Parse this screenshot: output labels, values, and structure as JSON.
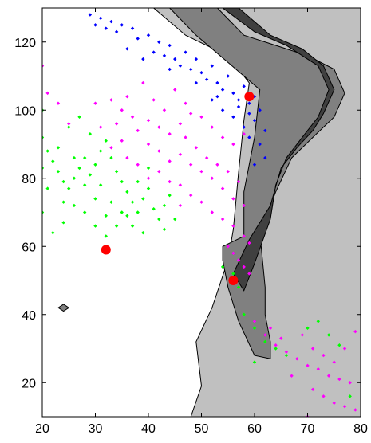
{
  "chart_data": {
    "type": "scatter",
    "title": "",
    "xlabel": "",
    "ylabel": "",
    "xlim": [
      20,
      80
    ],
    "ylim": [
      10,
      130
    ],
    "x_ticks": [
      20,
      30,
      40,
      50,
      60,
      70,
      80
    ],
    "y_ticks": [
      20,
      40,
      60,
      80,
      100,
      120
    ],
    "grid": false,
    "background_regions": [
      {
        "level": "shelf",
        "color": "#c0c0c0",
        "polygon": [
          [
            48,
            10
          ],
          [
            50,
            19
          ],
          [
            49,
            32
          ],
          [
            52,
            42
          ],
          [
            55,
            56
          ],
          [
            56,
            65
          ],
          [
            57,
            82
          ],
          [
            58,
            97
          ],
          [
            59,
            108
          ],
          [
            55,
            116
          ],
          [
            47,
            122
          ],
          [
            41,
            130
          ],
          [
            80,
            130
          ],
          [
            80,
            10
          ]
        ]
      },
      {
        "level": "slope",
        "color": "#808080",
        "polygon": [
          [
            53,
            130
          ],
          [
            58,
            122
          ],
          [
            64,
            119
          ],
          [
            70,
            116
          ],
          [
            75,
            112
          ],
          [
            77,
            105
          ],
          [
            75,
            98
          ],
          [
            71,
            92
          ],
          [
            67,
            86
          ],
          [
            64,
            76
          ],
          [
            61,
            64
          ],
          [
            62,
            48
          ],
          [
            62,
            40
          ],
          [
            63,
            32
          ],
          [
            63,
            27
          ],
          [
            60,
            28
          ],
          [
            57,
            38
          ],
          [
            55,
            48
          ],
          [
            54,
            56
          ],
          [
            54,
            60
          ],
          [
            58,
            63
          ],
          [
            58,
            76
          ],
          [
            60,
            92
          ],
          [
            61,
            106
          ],
          [
            55,
            114
          ],
          [
            49,
            122
          ],
          [
            44,
            130
          ]
        ]
      },
      {
        "level": "deep",
        "color": "#404040",
        "polygon": [
          [
            57,
            130
          ],
          [
            63,
            122
          ],
          [
            69,
            118
          ],
          [
            73,
            113
          ],
          [
            75,
            106
          ],
          [
            73,
            99
          ],
          [
            71,
            94
          ],
          [
            68,
            89
          ],
          [
            65,
            83
          ],
          [
            63,
            72
          ],
          [
            59,
            62
          ],
          [
            56,
            52
          ],
          [
            58,
            47
          ],
          [
            60,
            55
          ],
          [
            63,
            68
          ],
          [
            64,
            78
          ],
          [
            66,
            86
          ],
          [
            69,
            92
          ],
          [
            72,
            98
          ],
          [
            74,
            106
          ],
          [
            72,
            113
          ],
          [
            66,
            119
          ],
          [
            60,
            123
          ],
          [
            54,
            130
          ]
        ]
      },
      {
        "level": "islet",
        "color": "#808080",
        "polygon": [
          [
            23,
            42
          ],
          [
            24,
            41
          ],
          [
            25,
            42
          ],
          [
            24,
            43
          ]
        ]
      }
    ],
    "series": [
      {
        "color": "#0000ff",
        "marker": "small-diamond",
        "points": [
          [
            29,
            128
          ],
          [
            31,
            127
          ],
          [
            33,
            126
          ],
          [
            35,
            125
          ],
          [
            37,
            124
          ],
          [
            34,
            123
          ],
          [
            38,
            121
          ],
          [
            40,
            122
          ],
          [
            42,
            120
          ],
          [
            44,
            119
          ],
          [
            41,
            117
          ],
          [
            43,
            116
          ],
          [
            45,
            115
          ],
          [
            47,
            117
          ],
          [
            49,
            115
          ],
          [
            46,
            113
          ],
          [
            48,
            112
          ],
          [
            50,
            111
          ],
          [
            52,
            113
          ],
          [
            51,
            109
          ],
          [
            53,
            108
          ],
          [
            55,
            110
          ],
          [
            54,
            106
          ],
          [
            56,
            105
          ],
          [
            58,
            107
          ],
          [
            57,
            103
          ],
          [
            59,
            102
          ],
          [
            60,
            104
          ],
          [
            61,
            100
          ],
          [
            60,
            97
          ],
          [
            58,
            95
          ],
          [
            59,
            92
          ],
          [
            61,
            90
          ],
          [
            62,
            86
          ],
          [
            60,
            84
          ],
          [
            56,
            98
          ],
          [
            54,
            100
          ],
          [
            52,
            103
          ],
          [
            36,
            118
          ],
          [
            39,
            115
          ],
          [
            32,
            124
          ],
          [
            30,
            125
          ],
          [
            44,
            112
          ],
          [
            49,
            108
          ],
          [
            53,
            104
          ],
          [
            57,
            101
          ],
          [
            59,
            99
          ],
          [
            62,
            94
          ]
        ]
      },
      {
        "color": "#ff00ff",
        "marker": "small-diamond",
        "points": [
          [
            20,
            113
          ],
          [
            21,
            105
          ],
          [
            23,
            102
          ],
          [
            25,
            96
          ],
          [
            30,
            102
          ],
          [
            33,
            103
          ],
          [
            35,
            100
          ],
          [
            37,
            98
          ],
          [
            40,
            97
          ],
          [
            42,
            95
          ],
          [
            44,
            93
          ],
          [
            46,
            96
          ],
          [
            48,
            99
          ],
          [
            36,
            104
          ],
          [
            39,
            108
          ],
          [
            41,
            103
          ],
          [
            43,
            100
          ],
          [
            45,
            106
          ],
          [
            47,
            102
          ],
          [
            50,
            98
          ],
          [
            52,
            95
          ],
          [
            54,
            92
          ],
          [
            56,
            90
          ],
          [
            58,
            93
          ],
          [
            38,
            94
          ],
          [
            40,
            90
          ],
          [
            42,
            88
          ],
          [
            44,
            85
          ],
          [
            46,
            87
          ],
          [
            48,
            84
          ],
          [
            50,
            82
          ],
          [
            52,
            80
          ],
          [
            54,
            77
          ],
          [
            56,
            74
          ],
          [
            58,
            72
          ],
          [
            47,
            92
          ],
          [
            49,
            89
          ],
          [
            51,
            86
          ],
          [
            53,
            84
          ],
          [
            55,
            82
          ],
          [
            57,
            79
          ],
          [
            46,
            78
          ],
          [
            48,
            75
          ],
          [
            50,
            73
          ],
          [
            52,
            70
          ],
          [
            54,
            68
          ],
          [
            56,
            66
          ],
          [
            58,
            63
          ],
          [
            59,
            61
          ],
          [
            42,
            82
          ],
          [
            44,
            79
          ],
          [
            46,
            72
          ],
          [
            36,
            86
          ],
          [
            38,
            84
          ],
          [
            40,
            80
          ],
          [
            55,
            60
          ],
          [
            56,
            58
          ],
          [
            57,
            56
          ],
          [
            58,
            54
          ],
          [
            59,
            52
          ],
          [
            34,
            96
          ],
          [
            31,
            95
          ],
          [
            33,
            89
          ],
          [
            35,
            91
          ],
          [
            60,
            38
          ],
          [
            62,
            34
          ],
          [
            64,
            31
          ],
          [
            66,
            29
          ],
          [
            68,
            27
          ],
          [
            70,
            25
          ],
          [
            72,
            24
          ],
          [
            74,
            22
          ],
          [
            76,
            21
          ],
          [
            78,
            20
          ],
          [
            69,
            34
          ],
          [
            71,
            30
          ],
          [
            73,
            28
          ],
          [
            75,
            26
          ],
          [
            77,
            30
          ],
          [
            79,
            35
          ],
          [
            67,
            22
          ],
          [
            65,
            33
          ],
          [
            63,
            36
          ],
          [
            71,
            18
          ],
          [
            73,
            16
          ],
          [
            75,
            14
          ],
          [
            77,
            13
          ],
          [
            79,
            12
          ],
          [
            70,
            10
          ]
        ]
      },
      {
        "color": "#00ff00",
        "marker": "small-diamond",
        "points": [
          [
            20,
            100
          ],
          [
            20,
            92
          ],
          [
            21,
            88
          ],
          [
            22,
            85
          ],
          [
            23,
            82
          ],
          [
            24,
            79
          ],
          [
            25,
            77
          ],
          [
            26,
            80
          ],
          [
            27,
            83
          ],
          [
            28,
            86
          ],
          [
            29,
            81
          ],
          [
            30,
            84
          ],
          [
            31,
            88
          ],
          [
            32,
            91
          ],
          [
            33,
            86
          ],
          [
            34,
            82
          ],
          [
            35,
            79
          ],
          [
            36,
            76
          ],
          [
            37,
            73
          ],
          [
            38,
            70
          ],
          [
            39,
            74
          ],
          [
            40,
            77
          ],
          [
            41,
            71
          ],
          [
            42,
            68
          ],
          [
            43,
            72
          ],
          [
            44,
            75
          ],
          [
            26,
            72
          ],
          [
            28,
            70
          ],
          [
            30,
            74
          ],
          [
            32,
            69
          ],
          [
            34,
            66
          ],
          [
            24,
            67
          ],
          [
            22,
            64
          ],
          [
            20,
            70
          ],
          [
            21,
            77
          ],
          [
            23,
            89
          ],
          [
            25,
            95
          ],
          [
            27,
            98
          ],
          [
            29,
            93
          ],
          [
            31,
            78
          ],
          [
            33,
            73
          ],
          [
            35,
            70
          ],
          [
            37,
            66
          ],
          [
            39,
            64
          ],
          [
            26,
            86
          ],
          [
            28,
            78
          ],
          [
            30,
            66
          ],
          [
            32,
            63
          ],
          [
            36,
            69
          ],
          [
            38,
            79
          ],
          [
            40,
            83
          ],
          [
            43,
            65
          ],
          [
            45,
            68
          ],
          [
            24,
            73
          ],
          [
            20,
            83
          ],
          [
            58,
            40
          ],
          [
            60,
            36
          ],
          [
            62,
            32
          ],
          [
            64,
            30
          ],
          [
            66,
            28
          ],
          [
            70,
            36
          ],
          [
            72,
            38
          ],
          [
            74,
            34
          ],
          [
            76,
            31
          ],
          [
            78,
            16
          ],
          [
            54,
            54
          ],
          [
            56,
            52
          ],
          [
            57,
            48
          ],
          [
            60,
            26
          ]
        ]
      },
      {
        "color": "#ff0000",
        "marker": "large-dot",
        "points": [
          [
            59,
            104
          ],
          [
            32,
            59
          ],
          [
            56,
            50
          ]
        ]
      }
    ]
  }
}
